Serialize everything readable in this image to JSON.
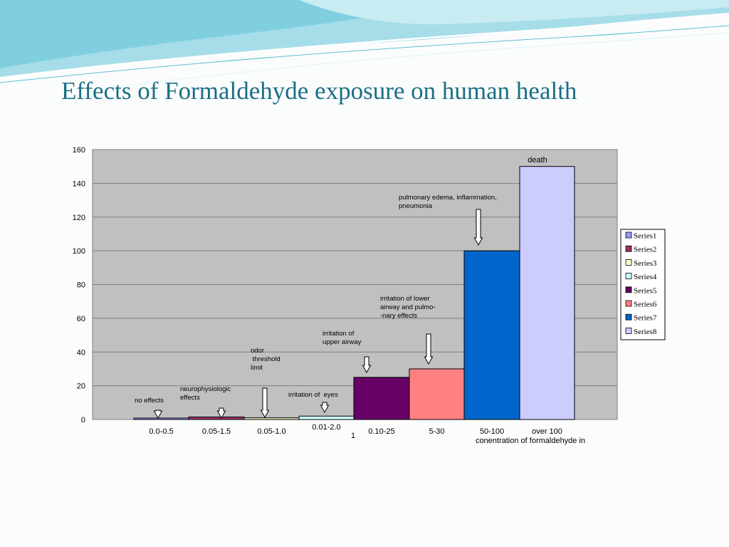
{
  "slide": {
    "title": "Effects of Formaldehyde exposure on human health",
    "accent_color": "#1a6f86"
  },
  "chart_data": {
    "type": "bar",
    "title": "",
    "xlabel": "conentration of formaldehyde in",
    "ylabel": "",
    "ylim": [
      0,
      160
    ],
    "yticks": [
      0,
      20,
      40,
      60,
      80,
      100,
      120,
      140,
      160
    ],
    "grid": true,
    "plot_background": "#c0c0c0",
    "legend_position": "right",
    "category_axis_label": "1",
    "series": [
      {
        "name": "Series1",
        "category": "0.0-0.5",
        "value": 0.5,
        "color": "#9999ff",
        "annotation": "no effects"
      },
      {
        "name": "Series2",
        "category": "0.05-1.5",
        "value": 1.5,
        "color": "#993366",
        "annotation": "neurophysiologic\neffects"
      },
      {
        "name": "Series3",
        "category": "0.05-1.0",
        "value": 1.0,
        "color": "#ffffcc",
        "annotation": "odor\n threshold\nlimit"
      },
      {
        "name": "Series4",
        "category": "0.01-2.0",
        "value": 2.0,
        "color": "#ccffff",
        "annotation": "irritation of  eyes"
      },
      {
        "name": "Series5",
        "category": "0.10-25",
        "value": 25,
        "color": "#660066",
        "annotation": "irritation of\nupper airway"
      },
      {
        "name": "Series6",
        "category": "5-30",
        "value": 30,
        "color": "#ff8080",
        "annotation": "irritation of lower\nairway and pulmo-\n-nary effects"
      },
      {
        "name": "Series7",
        "category": "50-100",
        "value": 100,
        "color": "#0066cc",
        "annotation": "pulmonary edema, inflammation,\npneumonia"
      },
      {
        "name": "Series8",
        "category": "over 100",
        "value": 150,
        "color": "#ccccff",
        "annotation": "death"
      }
    ]
  }
}
